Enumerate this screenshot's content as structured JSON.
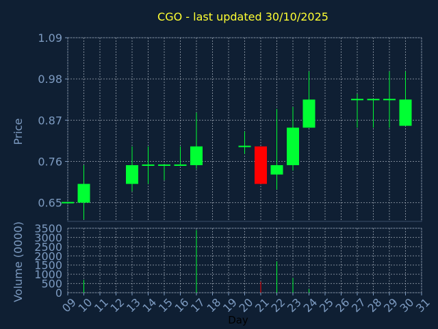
{
  "colors": {
    "background": "#0f1f33",
    "axis_text": "#7d9bc1",
    "title": "#ffff33",
    "grid": "#9aa4b0",
    "up": "#00ff33",
    "down": "#ff0000"
  },
  "chart_data": {
    "type": "candlestick",
    "title": "CGO - last updated 30/10/2025",
    "xlabel": "Day",
    "ylabel": "Price",
    "volume_label": "Volume (0000)",
    "grid": true,
    "price_ylim": [
      0.6,
      1.09
    ],
    "price_ticks": [
      "0.65",
      "0.76",
      "0.87",
      "0.98",
      "1.09"
    ],
    "volume_ylim": [
      0,
      3500
    ],
    "volume_ticks": [
      "0",
      "500",
      "1000",
      "1500",
      "2000",
      "2500",
      "3000",
      "3500"
    ],
    "x_ticks": [
      "09",
      "10",
      "11",
      "12",
      "13",
      "14",
      "15",
      "16",
      "17",
      "18",
      "19",
      "20",
      "21",
      "22",
      "23",
      "24",
      "25",
      "26",
      "27",
      "28",
      "29",
      "30",
      "31"
    ],
    "candles": [
      {
        "day": 9,
        "open": 0.65,
        "high": 0.65,
        "low": 0.65,
        "close": 0.65,
        "volume": 0
      },
      {
        "day": 10,
        "open": 0.65,
        "high": 0.75,
        "low": 0.605,
        "close": 0.7,
        "volume": 700
      },
      {
        "day": 13,
        "open": 0.7,
        "high": 0.8,
        "low": 0.68,
        "close": 0.75,
        "volume": 0
      },
      {
        "day": 14,
        "open": 0.75,
        "high": 0.8,
        "low": 0.7,
        "close": 0.75,
        "volume": 0
      },
      {
        "day": 15,
        "open": 0.75,
        "high": 0.75,
        "low": 0.71,
        "close": 0.75,
        "volume": 0
      },
      {
        "day": 16,
        "open": 0.75,
        "high": 0.8,
        "low": 0.75,
        "close": 0.75,
        "volume": 0
      },
      {
        "day": 17,
        "open": 0.75,
        "high": 0.89,
        "low": 0.74,
        "close": 0.8,
        "volume": 3400
      },
      {
        "day": 20,
        "open": 0.8,
        "high": 0.84,
        "low": 0.78,
        "close": 0.8,
        "volume": 0
      },
      {
        "day": 21,
        "open": 0.8,
        "high": 0.8,
        "low": 0.7,
        "close": 0.7,
        "volume": 600
      },
      {
        "day": 22,
        "open": 0.725,
        "high": 0.9,
        "low": 0.685,
        "close": 0.75,
        "volume": 1700
      },
      {
        "day": 23,
        "open": 0.75,
        "high": 0.905,
        "low": 0.735,
        "close": 0.85,
        "volume": 800
      },
      {
        "day": 24,
        "open": 0.85,
        "high": 1.0,
        "low": 0.85,
        "close": 0.925,
        "volume": 200
      },
      {
        "day": 27,
        "open": 0.925,
        "high": 0.94,
        "low": 0.85,
        "close": 0.925,
        "volume": 0
      },
      {
        "day": 28,
        "open": 0.925,
        "high": 0.925,
        "low": 0.85,
        "close": 0.925,
        "volume": 0
      },
      {
        "day": 29,
        "open": 0.925,
        "high": 1.0,
        "low": 0.85,
        "close": 0.925,
        "volume": 0
      },
      {
        "day": 30,
        "open": 0.855,
        "high": 1.0,
        "low": 0.855,
        "close": 0.925,
        "volume": 0
      }
    ]
  }
}
